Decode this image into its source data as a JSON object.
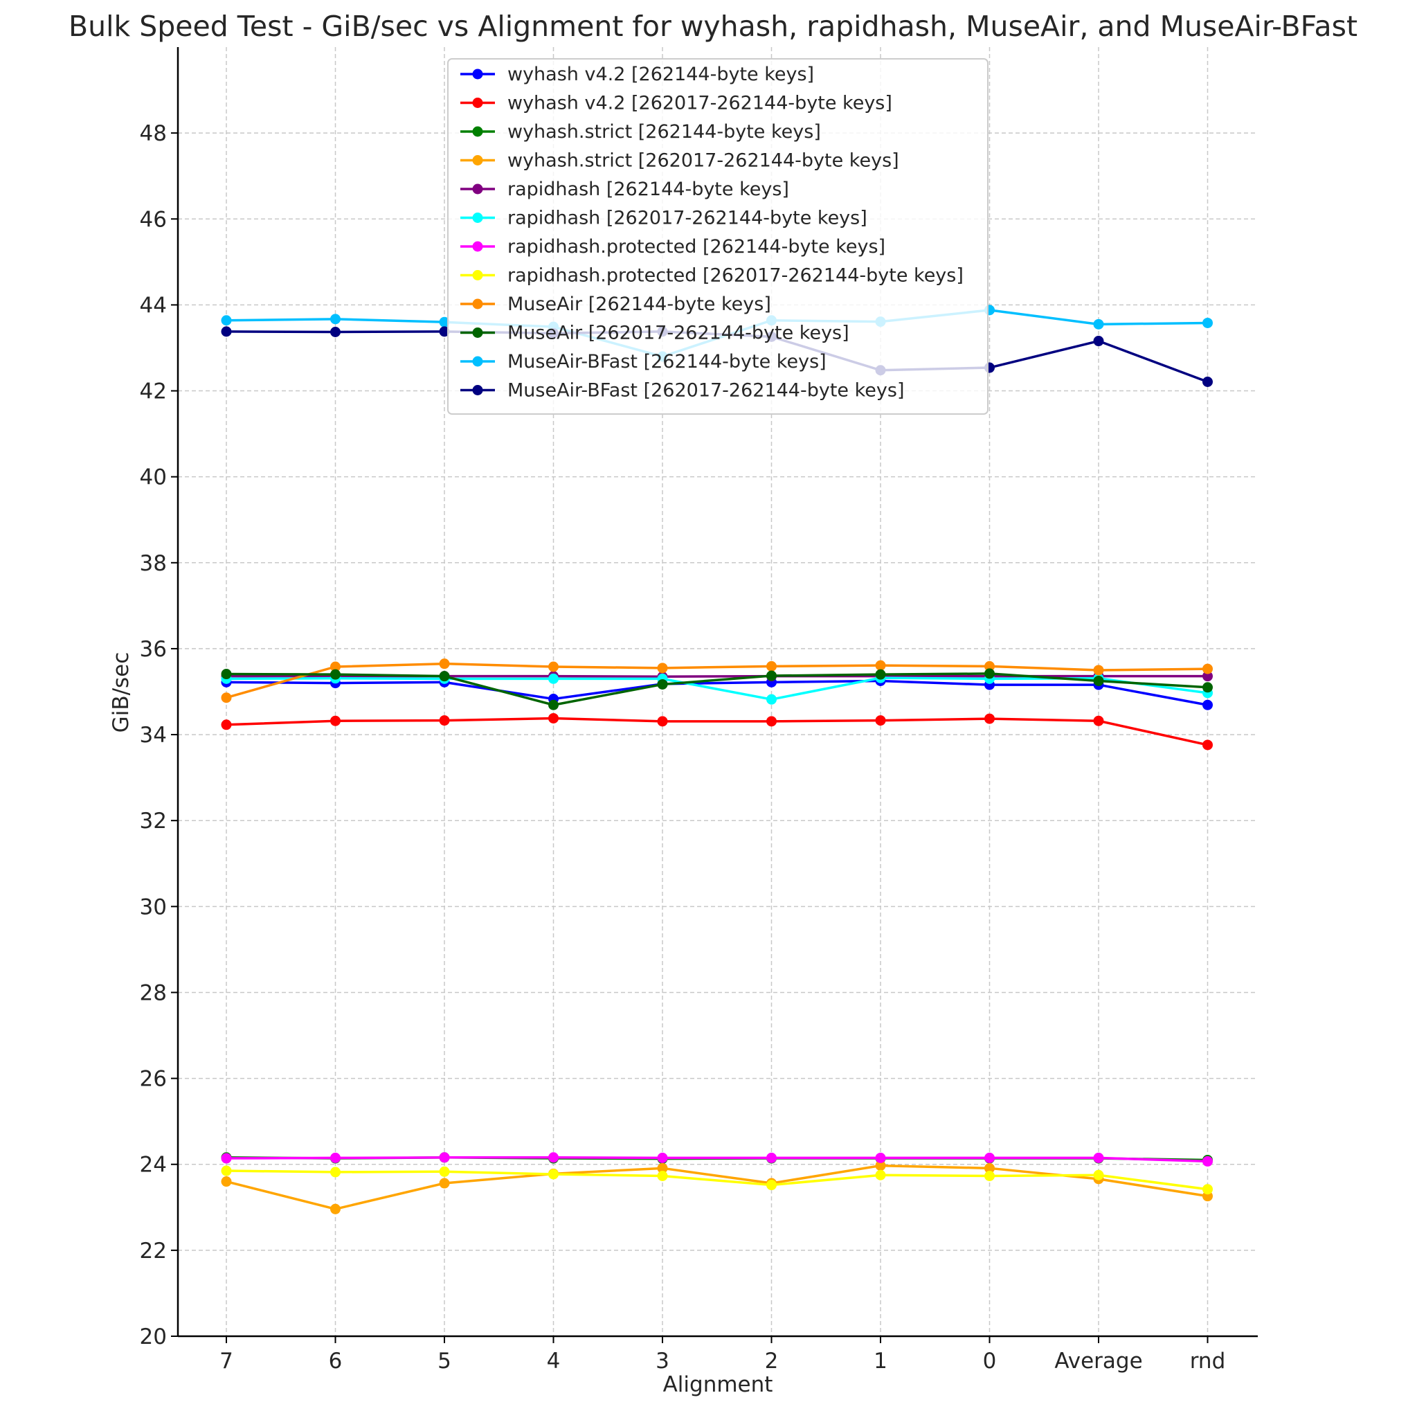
{
  "chart_data": {
    "type": "line",
    "title": "Bulk Speed Test - GiB/sec vs Alignment for wyhash, rapidhash, MuseAir, and MuseAir-BFast",
    "xlabel": "Alignment",
    "ylabel": "GiB/sec",
    "categories": [
      "7",
      "6",
      "5",
      "4",
      "3",
      "2",
      "1",
      "0",
      "Average",
      "rnd"
    ],
    "ylim": [
      20,
      50
    ],
    "yticks": [
      20,
      22,
      24,
      26,
      28,
      30,
      32,
      34,
      36,
      38,
      40,
      42,
      44,
      46,
      48
    ],
    "grid": true,
    "legend_position": "upper-center",
    "series": [
      {
        "name": "wyhash v4.2 [262144-byte keys]",
        "color": "#0000ff",
        "values": [
          35.22,
          35.2,
          35.22,
          34.83,
          35.18,
          35.22,
          35.25,
          35.16,
          35.16,
          34.69
        ]
      },
      {
        "name": "wyhash v4.2 [262017-262144-byte keys]",
        "color": "#ff0000",
        "values": [
          34.23,
          34.32,
          34.33,
          34.38,
          34.31,
          34.31,
          34.33,
          34.37,
          34.32,
          33.76
        ]
      },
      {
        "name": "wyhash.strict [262144-byte keys]",
        "color": "#008000",
        "values": [
          24.16,
          24.14,
          24.16,
          24.14,
          24.13,
          24.14,
          24.14,
          24.14,
          24.14,
          24.1
        ]
      },
      {
        "name": "wyhash.strict [262017-262144-byte keys]",
        "color": "#ffa500",
        "values": [
          23.6,
          22.96,
          23.56,
          23.78,
          23.91,
          23.56,
          23.97,
          23.91,
          23.66,
          23.26
        ]
      },
      {
        "name": "rapidhash [262144-byte keys]",
        "color": "#800080",
        "values": [
          35.36,
          35.36,
          35.36,
          35.36,
          35.35,
          35.36,
          35.36,
          35.36,
          35.36,
          35.36
        ]
      },
      {
        "name": "rapidhash [262017-262144-byte keys]",
        "color": "#00ffff",
        "values": [
          35.3,
          35.31,
          35.3,
          35.3,
          35.3,
          34.82,
          35.32,
          35.3,
          35.31,
          34.97
        ]
      },
      {
        "name": "rapidhash.protected [262144-byte keys]",
        "color": "#ff00ff",
        "values": [
          24.14,
          24.15,
          24.16,
          24.16,
          24.15,
          24.15,
          24.15,
          24.15,
          24.15,
          24.07
        ]
      },
      {
        "name": "rapidhash.protected [262017-262144-byte keys]",
        "color": "#ffff00",
        "values": [
          23.85,
          23.82,
          23.83,
          23.77,
          23.73,
          23.52,
          23.75,
          23.73,
          23.75,
          23.42
        ]
      },
      {
        "name": "MuseAir [262144-byte keys]",
        "color": "#ff8c00",
        "values": [
          34.86,
          35.58,
          35.65,
          35.58,
          35.55,
          35.59,
          35.61,
          35.59,
          35.5,
          35.53
        ]
      },
      {
        "name": "MuseAir [262017-262144-byte keys]",
        "color": "#006400",
        "values": [
          35.41,
          35.4,
          35.36,
          34.69,
          35.17,
          35.37,
          35.4,
          35.42,
          35.25,
          35.1
        ]
      },
      {
        "name": "MuseAir-BFast [262144-byte keys]",
        "color": "#00bfff",
        "values": [
          43.64,
          43.67,
          43.6,
          43.49,
          42.8,
          43.64,
          43.61,
          43.88,
          43.55,
          43.58
        ]
      },
      {
        "name": "MuseAir-BFast [262017-262144-byte keys]",
        "color": "#000080",
        "values": [
          43.38,
          43.37,
          43.38,
          43.34,
          43.38,
          43.26,
          42.48,
          42.54,
          43.16,
          42.21
        ]
      }
    ]
  }
}
